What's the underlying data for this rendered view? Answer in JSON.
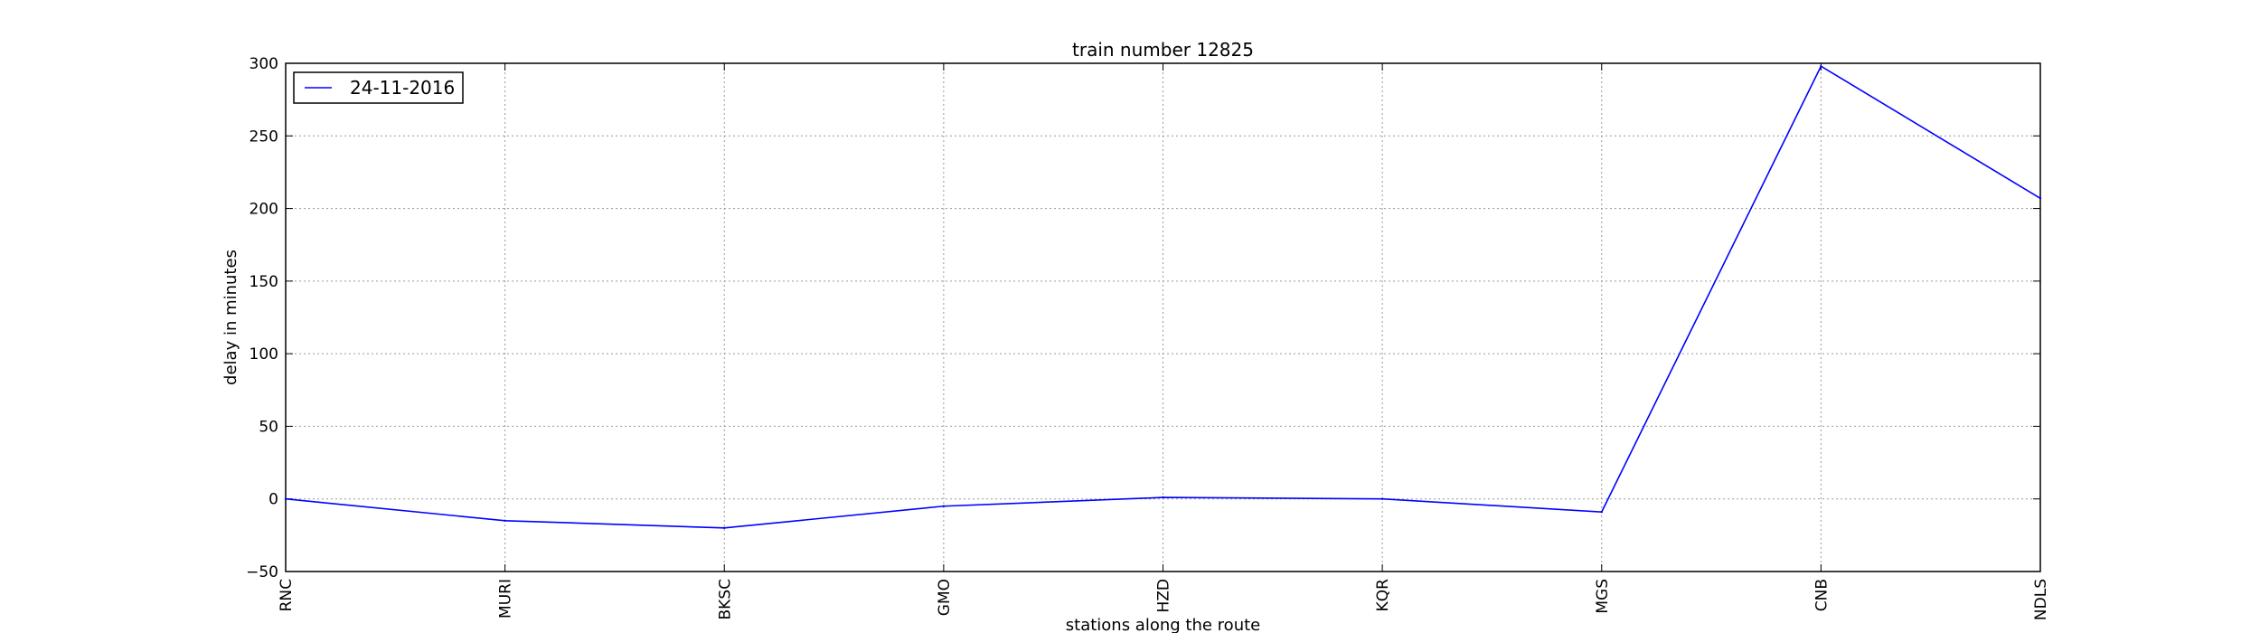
{
  "chart_data": {
    "type": "line",
    "title": "train number 12825",
    "xlabel": "stations along the route",
    "ylabel": "delay in minutes",
    "categories": [
      "RNC",
      "MURI",
      "BKSC",
      "GMO",
      "HZD",
      "KQR",
      "MGS",
      "CNB",
      "NDLS"
    ],
    "ylim": [
      -50,
      300
    ],
    "yticks": [
      -50,
      0,
      50,
      100,
      150,
      200,
      250,
      300
    ],
    "grid": true,
    "legend_position": "top-left",
    "series": [
      {
        "name": "24-11-2016",
        "color": "#0000ff",
        "values": [
          0,
          -15,
          -20,
          -5,
          1,
          0,
          -9,
          298,
          207
        ]
      }
    ]
  }
}
